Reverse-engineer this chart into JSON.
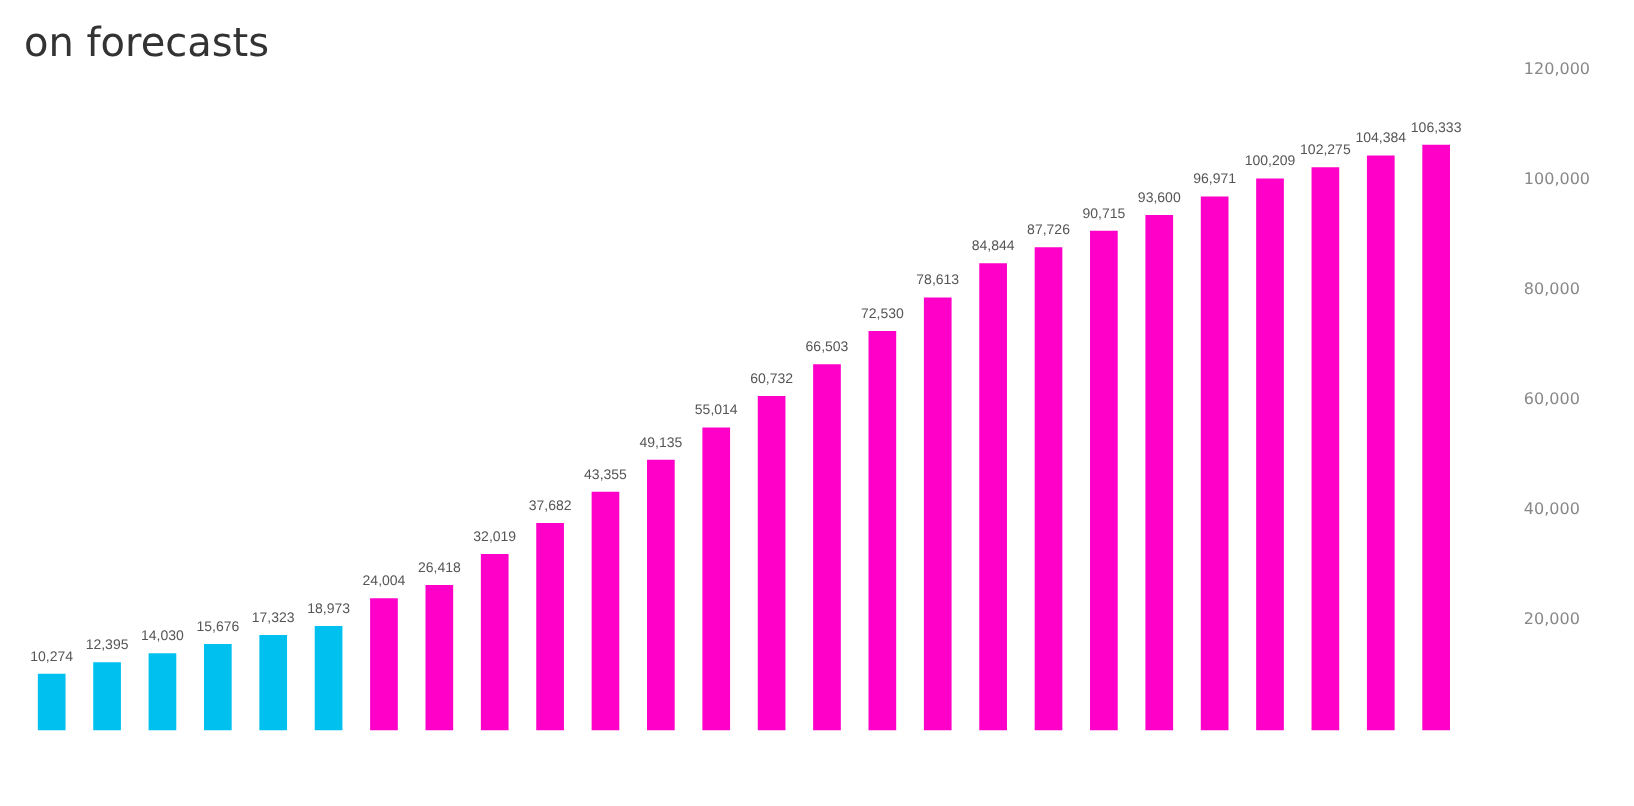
{
  "chart_data": {
    "type": "bar",
    "title": "on forecasts",
    "categories": [
      null,
      null,
      null,
      null,
      null,
      null,
      null,
      null,
      null,
      null,
      null,
      null,
      null,
      null,
      null,
      null,
      null,
      null,
      null,
      null,
      null,
      null,
      null,
      null,
      null,
      null
    ],
    "values": [
      10274,
      12395,
      14030,
      15676,
      17323,
      18973,
      24004,
      26418,
      32019,
      37682,
      43355,
      49135,
      55014,
      60732,
      66503,
      72530,
      78613,
      84844,
      87726,
      90715,
      93600,
      96971,
      100209,
      102275,
      104384,
      106333
    ],
    "colors": [
      "#00c0f0",
      "#00c0f0",
      "#00c0f0",
      "#00c0f0",
      "#00c0f0",
      "#00c0f0",
      "#ff00c8",
      "#ff00c8",
      "#ff00c8",
      "#ff00c8",
      "#ff00c8",
      "#ff00c8",
      "#ff00c8",
      "#ff00c8",
      "#ff00c8",
      "#ff00c8",
      "#ff00c8",
      "#ff00c8",
      "#ff00c8",
      "#ff00c8",
      "#ff00c8",
      "#ff00c8",
      "#ff00c8",
      "#ff00c8",
      "#ff00c8",
      "#ff00c8"
    ],
    "value_labels": [
      "10,274",
      "12,395",
      "14,030",
      "15,676",
      "17,323",
      "18,973",
      "24,004",
      "26,418",
      "32,019",
      "37,682",
      "43,355",
      "49,135",
      "55,014",
      "60,732",
      "66,503",
      "72,530",
      "78,613",
      "84,844",
      "87,726",
      "90,715",
      "93,600",
      "96,971",
      "100,209",
      "102,275",
      "104,384",
      "106,333"
    ],
    "ylim": [
      0,
      120000
    ],
    "yticks": [
      {
        "value": 20000,
        "label": "20,000"
      },
      {
        "value": 40000,
        "label": "40,000"
      },
      {
        "value": 60000,
        "label": "60,000"
      },
      {
        "value": 80000,
        "label": "80,000"
      },
      {
        "value": 100000,
        "label": "100,000"
      },
      {
        "value": 120000,
        "label": "120,000"
      }
    ],
    "grid": false,
    "legend": false
  }
}
